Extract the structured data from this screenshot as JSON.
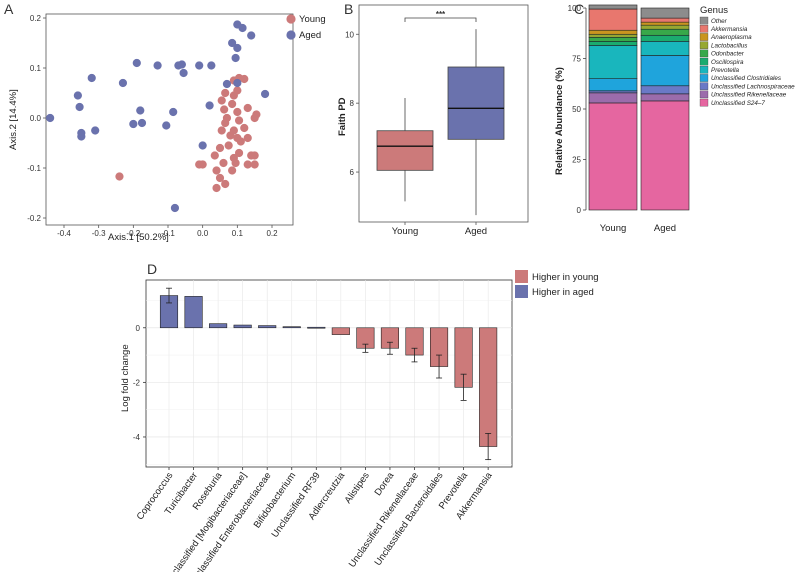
{
  "panels": [
    "A",
    "B",
    "C",
    "D"
  ],
  "colors": {
    "young": "#cc7a7a",
    "aged": "#6a72ad"
  },
  "chart_data": [
    {
      "id": "A",
      "type": "scatter",
      "xlabel": "Axis.1   [50.2%]",
      "ylabel": "Axis.2   [14.4%]",
      "xlim": [
        -0.45,
        0.22
      ],
      "ylim": [
        -0.2,
        0.2
      ],
      "xticks": [
        "-0.4",
        "-0.3",
        "-0.2",
        "-0.1",
        "0.0",
        "0.1",
        "0.2"
      ],
      "xtick_values": [
        -0.4,
        -0.3,
        -0.2,
        -0.1,
        0.0,
        0.1,
        0.2
      ],
      "yticks": [
        "-0.2",
        "-0.1",
        "0.0",
        "0.1",
        "0.2"
      ],
      "ytick_values": [
        -0.2,
        -0.1,
        0.0,
        0.1,
        0.2
      ],
      "legend": [
        "Young",
        "Aged"
      ],
      "series": [
        {
          "name": "Young",
          "points": [
            [
              0.09,
              0.075
            ],
            [
              0.105,
              0.08
            ],
            [
              0.12,
              0.078
            ],
            [
              0.065,
              0.05
            ],
            [
              0.055,
              0.035
            ],
            [
              0.09,
              0.045
            ],
            [
              0.1,
              0.055
            ],
            [
              0.085,
              0.028
            ],
            [
              0.13,
              0.02
            ],
            [
              0.155,
              0.007
            ],
            [
              0.15,
              0.0
            ],
            [
              0.062,
              0.017
            ],
            [
              0.07,
              0.0
            ],
            [
              0.1,
              0.012
            ],
            [
              0.105,
              -0.005
            ],
            [
              0.065,
              -0.01
            ],
            [
              0.055,
              -0.025
            ],
            [
              0.09,
              -0.025
            ],
            [
              0.12,
              -0.02
            ],
            [
              0.08,
              -0.035
            ],
            [
              0.1,
              -0.04
            ],
            [
              0.11,
              -0.047
            ],
            [
              0.13,
              -0.04
            ],
            [
              0.05,
              -0.06
            ],
            [
              0.075,
              -0.055
            ],
            [
              0.035,
              -0.075
            ],
            [
              0.105,
              -0.07
            ],
            [
              0.14,
              -0.075
            ],
            [
              0.15,
              -0.075
            ],
            [
              0.09,
              -0.08
            ],
            [
              0.0,
              -0.093
            ],
            [
              -0.01,
              -0.093
            ],
            [
              0.06,
              -0.09
            ],
            [
              0.095,
              -0.09
            ],
            [
              0.13,
              -0.093
            ],
            [
              0.15,
              -0.093
            ],
            [
              0.04,
              -0.105
            ],
            [
              0.085,
              -0.105
            ],
            [
              0.05,
              -0.12
            ],
            [
              0.065,
              -0.132
            ],
            [
              0.04,
              -0.14
            ],
            [
              -0.24,
              -0.117
            ]
          ]
        },
        {
          "name": "Aged",
          "points": [
            [
              0.1,
              0.187
            ],
            [
              0.115,
              0.18
            ],
            [
              0.14,
              0.165
            ],
            [
              0.1,
              0.14
            ],
            [
              0.085,
              0.15
            ],
            [
              0.095,
              0.12
            ],
            [
              -0.19,
              0.11
            ],
            [
              -0.13,
              0.105
            ],
            [
              -0.07,
              0.105
            ],
            [
              -0.06,
              0.107
            ],
            [
              -0.055,
              0.09
            ],
            [
              -0.01,
              0.105
            ],
            [
              0.025,
              0.105
            ],
            [
              0.07,
              0.068
            ],
            [
              0.1,
              0.07
            ],
            [
              -0.23,
              0.07
            ],
            [
              -0.32,
              0.08
            ],
            [
              -0.36,
              0.045
            ],
            [
              -0.355,
              0.022
            ],
            [
              -0.18,
              0.015
            ],
            [
              -0.085,
              0.012
            ],
            [
              0.02,
              0.025
            ],
            [
              0.18,
              0.048
            ],
            [
              -0.44,
              0.0
            ],
            [
              -0.35,
              -0.03
            ],
            [
              -0.35,
              -0.037
            ],
            [
              -0.31,
              -0.025
            ],
            [
              -0.2,
              -0.012
            ],
            [
              -0.175,
              -0.01
            ],
            [
              -0.105,
              -0.015
            ],
            [
              0.0,
              -0.055
            ],
            [
              -0.08,
              -0.18
            ]
          ]
        }
      ]
    },
    {
      "id": "B",
      "type": "box",
      "ylabel": "Faith PD",
      "categories": [
        "Young",
        "Aged"
      ],
      "yticks": [
        "6",
        "8",
        "10"
      ],
      "ytick_values": [
        6,
        8,
        10
      ],
      "ylim": [
        4.55,
        10.85
      ],
      "boxes": [
        {
          "name": "Young",
          "whisker_low": 5.15,
          "q1": 6.05,
          "median": 6.75,
          "q3": 7.2,
          "whisker_high": 8.15
        },
        {
          "name": "Aged",
          "whisker_low": 4.75,
          "q1": 6.95,
          "median": 7.85,
          "q3": 9.05,
          "whisker_high": 10.15
        }
      ],
      "significance": "***"
    },
    {
      "id": "C",
      "type": "stacked-bar",
      "ylabel": "Relative Abundance (%)",
      "categories": [
        "Young",
        "Aged"
      ],
      "yticks": [
        "0",
        "25",
        "50",
        "75",
        "100"
      ],
      "ytick_values": [
        0,
        25,
        50,
        75,
        100
      ],
      "ylim": [
        0,
        100
      ],
      "legend_title": "Genus",
      "series": [
        {
          "name": "Unclassified S24–7",
          "color": "#e566a0",
          "values": [
            53.0,
            54.0
          ]
        },
        {
          "name": "Unclassified Rikenellaceae",
          "color": "#9b6cab",
          "values": [
            5.0,
            3.5
          ]
        },
        {
          "name": "Unclassified Lachnospiraceae",
          "color": "#6a79c6",
          "values": [
            1.0,
            4.0
          ]
        },
        {
          "name": "Unclassified Clostridiales",
          "color": "#1fa4dc",
          "values": [
            6.0,
            15.0
          ]
        },
        {
          "name": "Prevotella",
          "color": "#19b6bd",
          "values": [
            16.5,
            7.0
          ]
        },
        {
          "name": "Oscillospira",
          "color": "#1bab6f",
          "values": [
            2.0,
            3.0
          ]
        },
        {
          "name": "Odoribacter",
          "color": "#38a84a",
          "values": [
            2.0,
            3.0
          ]
        },
        {
          "name": "Lactobacillus",
          "color": "#96a832",
          "values": [
            1.5,
            2.0
          ]
        },
        {
          "name": "Anaeroplasma",
          "color": "#c9951f",
          "values": [
            2.0,
            1.5
          ]
        },
        {
          "name": "Akkermansia",
          "color": "#e8776e",
          "values": [
            10.5,
            2.0
          ]
        },
        {
          "name": "Other",
          "color": "#8c8c8c",
          "values": [
            2.0,
            5.0
          ]
        }
      ]
    },
    {
      "id": "D",
      "type": "bar",
      "ylabel": "Log fold change",
      "yticks": [
        "-4",
        "-2",
        "0"
      ],
      "ytick_values": [
        -4,
        -2,
        0
      ],
      "ylim": [
        -5.1,
        1.75
      ],
      "legend": [
        "Higher in young",
        "Higher in aged"
      ],
      "categories": [
        "Coprococcus",
        "Turicibacter",
        "Roseburia",
        "Unclassified [Mogibacteriaceae]",
        "Unclassified Enterobacteriaceae",
        "Bifidobacterium",
        "Unclassified RF39",
        "Adlercreutzia",
        "Alistipes",
        "Dorea",
        "Unclassified Rikenellaceae",
        "Unclassified Bacteroidales",
        "Prevotella",
        "Akkermansia"
      ],
      "values": [
        1.18,
        1.15,
        0.15,
        0.1,
        0.08,
        0.04,
        0.02,
        -0.25,
        -0.75,
        -0.75,
        -1.0,
        -1.42,
        -2.18,
        -4.35
      ],
      "errors": [
        0.27,
        null,
        null,
        null,
        null,
        null,
        null,
        null,
        0.15,
        0.22,
        0.25,
        0.42,
        0.48,
        0.48
      ],
      "groups": [
        "aged",
        "aged",
        "aged",
        "aged",
        "aged",
        "aged",
        "aged",
        "young",
        "young",
        "young",
        "young",
        "young",
        "young",
        "young"
      ]
    }
  ]
}
